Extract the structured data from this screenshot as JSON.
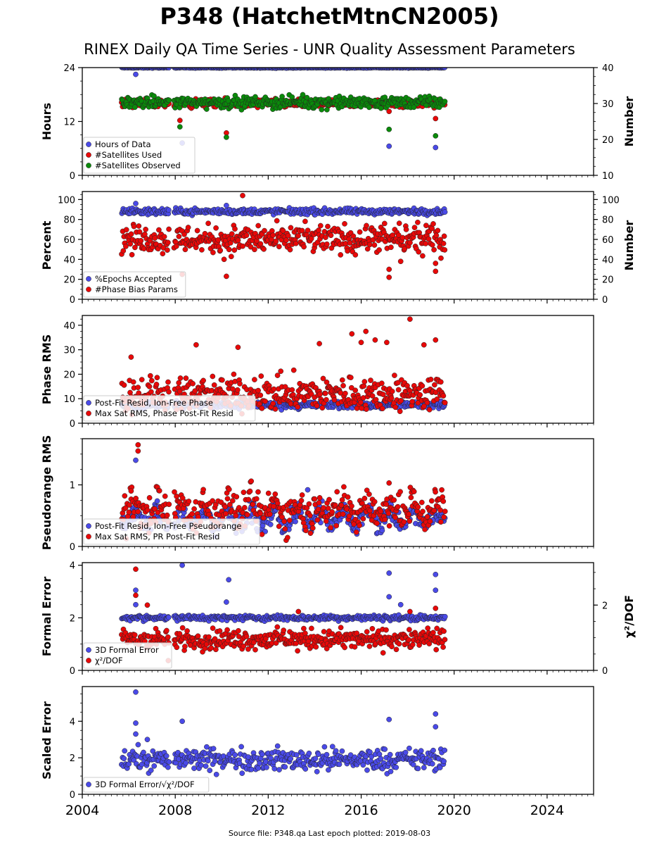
{
  "title": "P348 (HatchetMtnCN2005)",
  "subtitle": "RINEX Daily QA Time Series - UNR Quality Assessment Parameters",
  "footer": "Source file: P348.qa Last epoch plotted: 2019-08-03",
  "colors": {
    "blue": "#4a4ae8",
    "red": "#e80808",
    "green": "#0a8a0a"
  },
  "chart_data": {
    "type": "scatter",
    "x_range": [
      2004,
      2026
    ],
    "x_ticks": [
      "2004",
      "2008",
      "2012",
      "2016",
      "2020",
      "2024"
    ],
    "data_span": [
      2005.7,
      2019.6
    ],
    "panels": [
      {
        "ylabel": "Hours",
        "ylim": [
          0,
          24
        ],
        "yticks": [
          "0",
          "12",
          "24"
        ],
        "y2label": "Number",
        "y2lim": [
          10,
          40
        ],
        "y2ticks": [
          "10",
          "20",
          "30",
          "40"
        ],
        "legend": [
          "Hours of Data",
          "#Satellites Used",
          "#Satellites Observed"
        ],
        "series": [
          {
            "name": "Hours of Data",
            "color": "blue",
            "axis": "left",
            "typical": 24.0,
            "spread": 0.05,
            "outliers": [
              [
                2006.3,
                22.5
              ],
              [
                2008.3,
                7.2
              ],
              [
                2017.2,
                6.5
              ],
              [
                2019.2,
                6.2
              ]
            ]
          },
          {
            "name": "#Satellites Used",
            "color": "red",
            "axis": "right",
            "typical": 30.0,
            "spread": 0.6,
            "outliers": [
              [
                2008.2,
                25.3
              ],
              [
                2010.2,
                21.8
              ],
              [
                2017.2,
                27.8
              ],
              [
                2019.2,
                25.8
              ]
            ]
          },
          {
            "name": "#Satellites Observed",
            "color": "green",
            "axis": "right",
            "typical": 30.3,
            "spread": 0.8,
            "outliers": [
              [
                2008.2,
                23.5
              ],
              [
                2010.2,
                20.6
              ],
              [
                2017.2,
                22.8
              ],
              [
                2019.2,
                21.0
              ]
            ]
          }
        ]
      },
      {
        "ylabel": "Percent",
        "ylim": [
          0,
          108
        ],
        "yticks": [
          "0",
          "20",
          "40",
          "60",
          "80",
          "100"
        ],
        "y2label": "Number",
        "y2lim": [
          0,
          108
        ],
        "y2ticks": [
          "0",
          "20",
          "40",
          "60",
          "80",
          "100"
        ],
        "legend": [
          "%Epochs Accepted",
          "#Phase Bias Params"
        ],
        "series": [
          {
            "name": "%Epochs Accepted",
            "color": "blue",
            "axis": "left",
            "typical": 88.0,
            "spread": 1.5,
            "outliers": [
              [
                2006.3,
                96
              ],
              [
                2010.2,
                94
              ]
            ]
          },
          {
            "name": "#Phase Bias Params",
            "color": "red",
            "axis": "right",
            "typical": 60.0,
            "spread": 7,
            "outliers": [
              [
                2008.3,
                25
              ],
              [
                2010.2,
                23
              ],
              [
                2010.1,
                40
              ],
              [
                2010.9,
                104
              ],
              [
                2017.2,
                22
              ],
              [
                2017.2,
                30
              ],
              [
                2017.7,
                38
              ],
              [
                2019.2,
                28
              ],
              [
                2019.2,
                36
              ]
            ]
          }
        ]
      },
      {
        "ylabel": "Phase RMS",
        "ylim": [
          0,
          44
        ],
        "yticks": [
          "0",
          "10",
          "20",
          "30",
          "40"
        ],
        "legend": [
          "Post-Fit Resid, Ion-Free Phase",
          "Max Sat RMS, Phase Post-Fit Resid"
        ],
        "series": [
          {
            "name": "Post-Fit Resid, Ion-Free Phase",
            "color": "blue",
            "axis": "left",
            "typical": 7.5,
            "spread": 0.8,
            "outliers": []
          },
          {
            "name": "Max Sat RMS, Phase Post-Fit Resid",
            "color": "red",
            "axis": "left",
            "typical": 12.0,
            "spread": 3.5,
            "outliers": [
              [
                2006.1,
                27
              ],
              [
                2008.9,
                32
              ],
              [
                2010.7,
                31
              ],
              [
                2014.2,
                32.5
              ],
              [
                2015.6,
                36.5
              ],
              [
                2016.2,
                37.5
              ],
              [
                2016.0,
                33
              ],
              [
                2016.6,
                34
              ],
              [
                2017.1,
                33
              ],
              [
                2018.1,
                42.5
              ],
              [
                2018.7,
                32
              ],
              [
                2019.2,
                34
              ]
            ]
          }
        ]
      },
      {
        "ylabel": "Pseudorange RMS",
        "ylim": [
          0,
          1.75
        ],
        "yticks": [
          "0",
          "1"
        ],
        "legend": [
          "Post-Fit Resid, Ion-Free Pseudorange",
          "Max Sat RMS, PR Post-Fit Resid"
        ],
        "series": [
          {
            "name": "Post-Fit Resid, Ion-Free Pseudorange",
            "color": "blue",
            "axis": "left",
            "typical": 0.45,
            "spread": 0.08,
            "outliers": [
              [
                2006.3,
                1.4
              ],
              [
                2013.7,
                0.92
              ]
            ]
          },
          {
            "name": "Max Sat RMS, PR Post-Fit Resid",
            "color": "red",
            "axis": "left",
            "typical": 0.6,
            "spread": 0.15,
            "outliers": [
              [
                2006.4,
                1.65
              ],
              [
                2006.4,
                1.55
              ],
              [
                2006.1,
                0.9
              ],
              [
                2017.2,
                1.03
              ]
            ]
          }
        ]
      },
      {
        "ylabel": "Formal Error",
        "ylim": [
          0,
          4.1
        ],
        "yticks": [
          "0",
          "2",
          "4"
        ],
        "y2label": "χ²/DOF",
        "y2lim": [
          0,
          3.3
        ],
        "y2ticks": [
          "0",
          "2"
        ],
        "legend": [
          "3D Formal Error",
          "χ²/DOF"
        ],
        "series": [
          {
            "name": "3D Formal Error",
            "color": "blue",
            "axis": "left",
            "typical": 2.0,
            "spread": 0.05,
            "outliers": [
              [
                2006.3,
                3.05
              ],
              [
                2006.3,
                2.5
              ],
              [
                2008.3,
                4.0
              ],
              [
                2010.2,
                2.6
              ],
              [
                2010.3,
                3.45
              ],
              [
                2017.2,
                3.7
              ],
              [
                2017.2,
                2.8
              ],
              [
                2017.7,
                2.5
              ],
              [
                2019.2,
                3.65
              ],
              [
                2019.2,
                3.05
              ]
            ]
          },
          {
            "name": "χ²/DOF",
            "color": "red",
            "axis": "right",
            "typical": 0.95,
            "spread": 0.15,
            "outliers": [
              [
                2006.3,
                3.1
              ],
              [
                2006.3,
                2.3
              ],
              [
                2006.8,
                2.0
              ],
              [
                2007.7,
                0.3
              ],
              [
                2013.3,
                1.8
              ],
              [
                2018.1,
                1.8
              ],
              [
                2019.2,
                1.9
              ]
            ]
          }
        ]
      },
      {
        "ylabel": "Scaled Error",
        "ylim": [
          0,
          5.9
        ],
        "yticks": [
          "0",
          "2",
          "4"
        ],
        "legend": [
          "3D Formal Error/√χ²/DOF"
        ],
        "series": [
          {
            "name": "3D Formal Error/√χ²/DOF",
            "color": "blue",
            "axis": "left",
            "typical": 1.9,
            "spread": 0.3,
            "outliers": [
              [
                2006.3,
                5.6
              ],
              [
                2006.3,
                3.9
              ],
              [
                2006.3,
                3.3
              ],
              [
                2006.8,
                3.0
              ],
              [
                2008.3,
                4.0
              ],
              [
                2017.2,
                4.1
              ],
              [
                2019.2,
                4.4
              ],
              [
                2019.2,
                3.7
              ]
            ]
          }
        ]
      }
    ]
  }
}
